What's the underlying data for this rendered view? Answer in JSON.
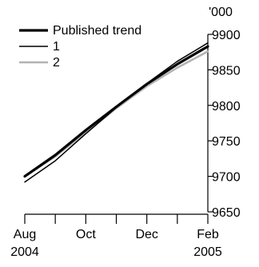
{
  "chart_data": {
    "type": "line",
    "unit_label": "'000",
    "x": [
      "2004-08",
      "2004-09",
      "2004-10",
      "2004-11",
      "2004-12",
      "2005-01",
      "2005-02"
    ],
    "x_tick_labels": [
      {
        "x": "2004-08",
        "label": "Aug",
        "year": "2004"
      },
      {
        "x": "2004-10",
        "label": "Oct",
        "year": ""
      },
      {
        "x": "2004-12",
        "label": "Dec",
        "year": ""
      },
      {
        "x": "2005-02",
        "label": "Feb",
        "year": "2005"
      }
    ],
    "ylim": [
      9650,
      9900
    ],
    "y_ticks": [
      9650,
      9700,
      9750,
      9800,
      9850,
      9900
    ],
    "series": [
      {
        "name": "Published trend",
        "color": "#000000",
        "weight": "heavy",
        "values": [
          9700,
          9730,
          9765,
          9798,
          9830,
          9858,
          9883
        ]
      },
      {
        "name": "1",
        "color": "#000000",
        "weight": "thin",
        "values": [
          9692,
          9722,
          9760,
          9797,
          9831,
          9862,
          9888
        ]
      },
      {
        "name": "2",
        "color": "#b3b3b3",
        "weight": "medium",
        "values": [
          9700,
          9728,
          9762,
          9796,
          9827,
          9853,
          9876
        ]
      }
    ],
    "legend_position": "top-left",
    "grid": false
  }
}
